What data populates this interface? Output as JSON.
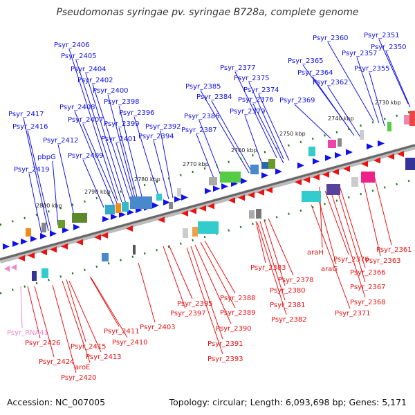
{
  "title": "Pseudomonas syringae pv. syringae B728a, complete genome",
  "footer": {
    "accession": "Accession: NC_007005",
    "summary": "Topology: circular; Length: 6,093,698 bp; Genes: 5,171"
  },
  "colors": {
    "forward": "#1010ee",
    "reverse": "#ee1010",
    "rna": "#ee88cc",
    "axis": "#888888",
    "tick": "#1a7a1a"
  },
  "ruler": [
    "2730 kbp",
    "2740 kbp",
    "2750 kbp",
    "2760 kbp",
    "2770 kbp",
    "2780 kbp",
    "2790 kbp",
    "2800 kbp"
  ],
  "top_labels": [
    "Psyr_2351",
    "Psyr_2350",
    "Psyr_2360",
    "Psyr_2357",
    "Psyr_2355",
    "Psyr_2365",
    "Psyr_2364",
    "Psyr_2362",
    "Psyr_2369",
    "Psyr_2377",
    "Psyr_2375",
    "Psyr_2374",
    "Psyr_2376",
    "Psyr_2379",
    "Psyr_2385",
    "Psyr_2384",
    "Psyr_2386",
    "Psyr_2387",
    "Psyr_2406",
    "Psyr_2405",
    "Psyr_2404",
    "Psyr_2402",
    "Psyr_2400",
    "Psyr_2398",
    "Psyr_2408",
    "Psyr_2396",
    "Psyr_2407",
    "Psyr_2399",
    "Psyr_2392",
    "Psyr_2394",
    "Psyr_2401",
    "Psyr_2417",
    "Psyr_2416",
    "Psyr_2412",
    "Psyr_2409",
    "pbpG",
    "Psyr_2419"
  ],
  "bottom_labels": [
    "Psyr_2361",
    "Psyr_2363",
    "araH",
    "Psyr_2370",
    "araG",
    "Psyr_2366",
    "Psyr_2367",
    "Psyr_2368",
    "Psyr_2371",
    "Psyr_2383",
    "Psyr_2378",
    "Psyr_2380",
    "Psyr_2381",
    "Psyr_2382",
    "Psyr_2388",
    "Psyr_2395",
    "Psyr_2389",
    "Psyr_2397",
    "Psyr_2390",
    "Psyr_2391",
    "Psyr_2393",
    "Psyr_2403",
    "Psyr_2411",
    "Psyr_2410",
    "Psyr_2415",
    "Psyr_2413",
    "Psyr_2426",
    "Psyr_2424",
    "aroE",
    "Psyr_2420"
  ],
  "rna_labels": [
    "Psyr_RNA41"
  ]
}
